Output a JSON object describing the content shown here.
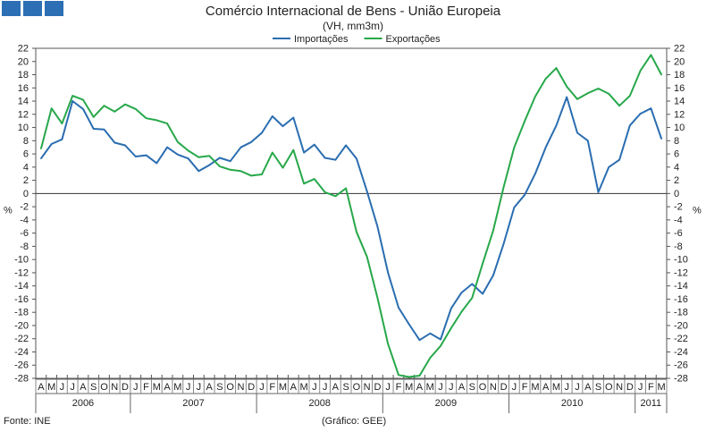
{
  "header": {
    "title": "Comércio Internacional de Bens - União Europeia",
    "subtitle": "(VH, mm3m)"
  },
  "footer": {
    "source": "Fonte: INE",
    "credit": "(Gráfico: GEE)"
  },
  "colors": {
    "import": "#2a6db0",
    "export": "#27a84a",
    "brand": "#2d6fb5"
  },
  "chart_data": {
    "type": "line",
    "title": "Comércio Internacional de Bens - União Europeia",
    "subtitle": "(VH, mm3m)",
    "ylabel": "%",
    "ylim": [
      -28,
      22
    ],
    "ytick_step": 2,
    "grid": false,
    "legend_position": "top-center",
    "x": [
      "2006-04",
      "2006-05",
      "2006-06",
      "2006-07",
      "2006-08",
      "2006-09",
      "2006-10",
      "2006-11",
      "2006-12",
      "2007-01",
      "2007-02",
      "2007-03",
      "2007-04",
      "2007-05",
      "2007-06",
      "2007-07",
      "2007-08",
      "2007-09",
      "2007-10",
      "2007-11",
      "2007-12",
      "2008-01",
      "2008-02",
      "2008-03",
      "2008-04",
      "2008-05",
      "2008-06",
      "2008-07",
      "2008-08",
      "2008-09",
      "2008-10",
      "2008-11",
      "2008-12",
      "2009-01",
      "2009-02",
      "2009-03",
      "2009-04",
      "2009-05",
      "2009-06",
      "2009-07",
      "2009-08",
      "2009-09",
      "2009-10",
      "2009-11",
      "2009-12",
      "2010-01",
      "2010-02",
      "2010-03",
      "2010-04",
      "2010-05",
      "2010-06",
      "2010-07",
      "2010-08",
      "2010-09",
      "2010-10",
      "2010-11",
      "2010-12",
      "2011-01",
      "2011-02",
      "2011-03"
    ],
    "month_labels": [
      "A",
      "M",
      "J",
      "J",
      "A",
      "S",
      "O",
      "N",
      "D",
      "J",
      "F",
      "M",
      "A",
      "M",
      "J",
      "J",
      "A",
      "S",
      "O",
      "N",
      "D",
      "J",
      "F",
      "M",
      "A",
      "M",
      "J",
      "J",
      "A",
      "S",
      "O",
      "N",
      "D",
      "J",
      "F",
      "M",
      "A",
      "M",
      "J",
      "J",
      "A",
      "S",
      "O",
      "N",
      "D",
      "J",
      "F",
      "M",
      "A",
      "M",
      "J",
      "J",
      "A",
      "S",
      "O",
      "N",
      "D",
      "J",
      "F",
      "M"
    ],
    "years": [
      {
        "label": "2006",
        "start": 0,
        "end": 8
      },
      {
        "label": "2007",
        "start": 9,
        "end": 20
      },
      {
        "label": "2008",
        "start": 21,
        "end": 32
      },
      {
        "label": "2009",
        "start": 33,
        "end": 44
      },
      {
        "label": "2010",
        "start": 45,
        "end": 56
      },
      {
        "label": "2011",
        "start": 57,
        "end": 59
      }
    ],
    "series": [
      {
        "name": "Importações",
        "color": "#2a6db0",
        "values": [
          5.3,
          7.5,
          8.2,
          14.0,
          12.8,
          9.8,
          9.7,
          7.7,
          7.3,
          5.6,
          5.8,
          4.6,
          7.0,
          5.9,
          5.3,
          3.4,
          4.3,
          5.4,
          4.9,
          7.0,
          7.8,
          9.2,
          11.7,
          10.2,
          11.5,
          6.2,
          7.4,
          5.4,
          5.1,
          7.3,
          5.3,
          0.3,
          -5.0,
          -12.0,
          -17.3,
          -19.8,
          -22.2,
          -21.2,
          -22.1,
          -17.4,
          -15.0,
          -13.7,
          -15.2,
          -12.4,
          -7.6,
          -2.1,
          -0.2,
          3.0,
          7.0,
          10.3,
          14.6,
          9.2,
          8.0,
          0.2,
          4.0,
          5.1,
          10.3,
          12.1,
          12.9,
          8.3
        ]
      },
      {
        "name": "Exportações",
        "color": "#27a84a",
        "values": [
          6.8,
          12.9,
          10.6,
          14.8,
          14.2,
          11.6,
          13.3,
          12.4,
          13.5,
          12.8,
          11.4,
          11.1,
          10.6,
          7.8,
          6.5,
          5.5,
          5.7,
          4.1,
          3.6,
          3.4,
          2.7,
          2.9,
          6.2,
          3.9,
          6.6,
          1.5,
          2.2,
          0.2,
          -0.4,
          0.8,
          -5.8,
          -9.6,
          -15.8,
          -22.8,
          -27.5,
          -27.8,
          -27.6,
          -24.9,
          -23.1,
          -20.4,
          -17.9,
          -15.8,
          -10.6,
          -5.6,
          1.0,
          7.0,
          11.0,
          14.7,
          17.4,
          19.0,
          16.2,
          14.3,
          15.2,
          15.9,
          15.1,
          13.3,
          14.8,
          18.6,
          21.0,
          18.0
        ]
      }
    ]
  }
}
